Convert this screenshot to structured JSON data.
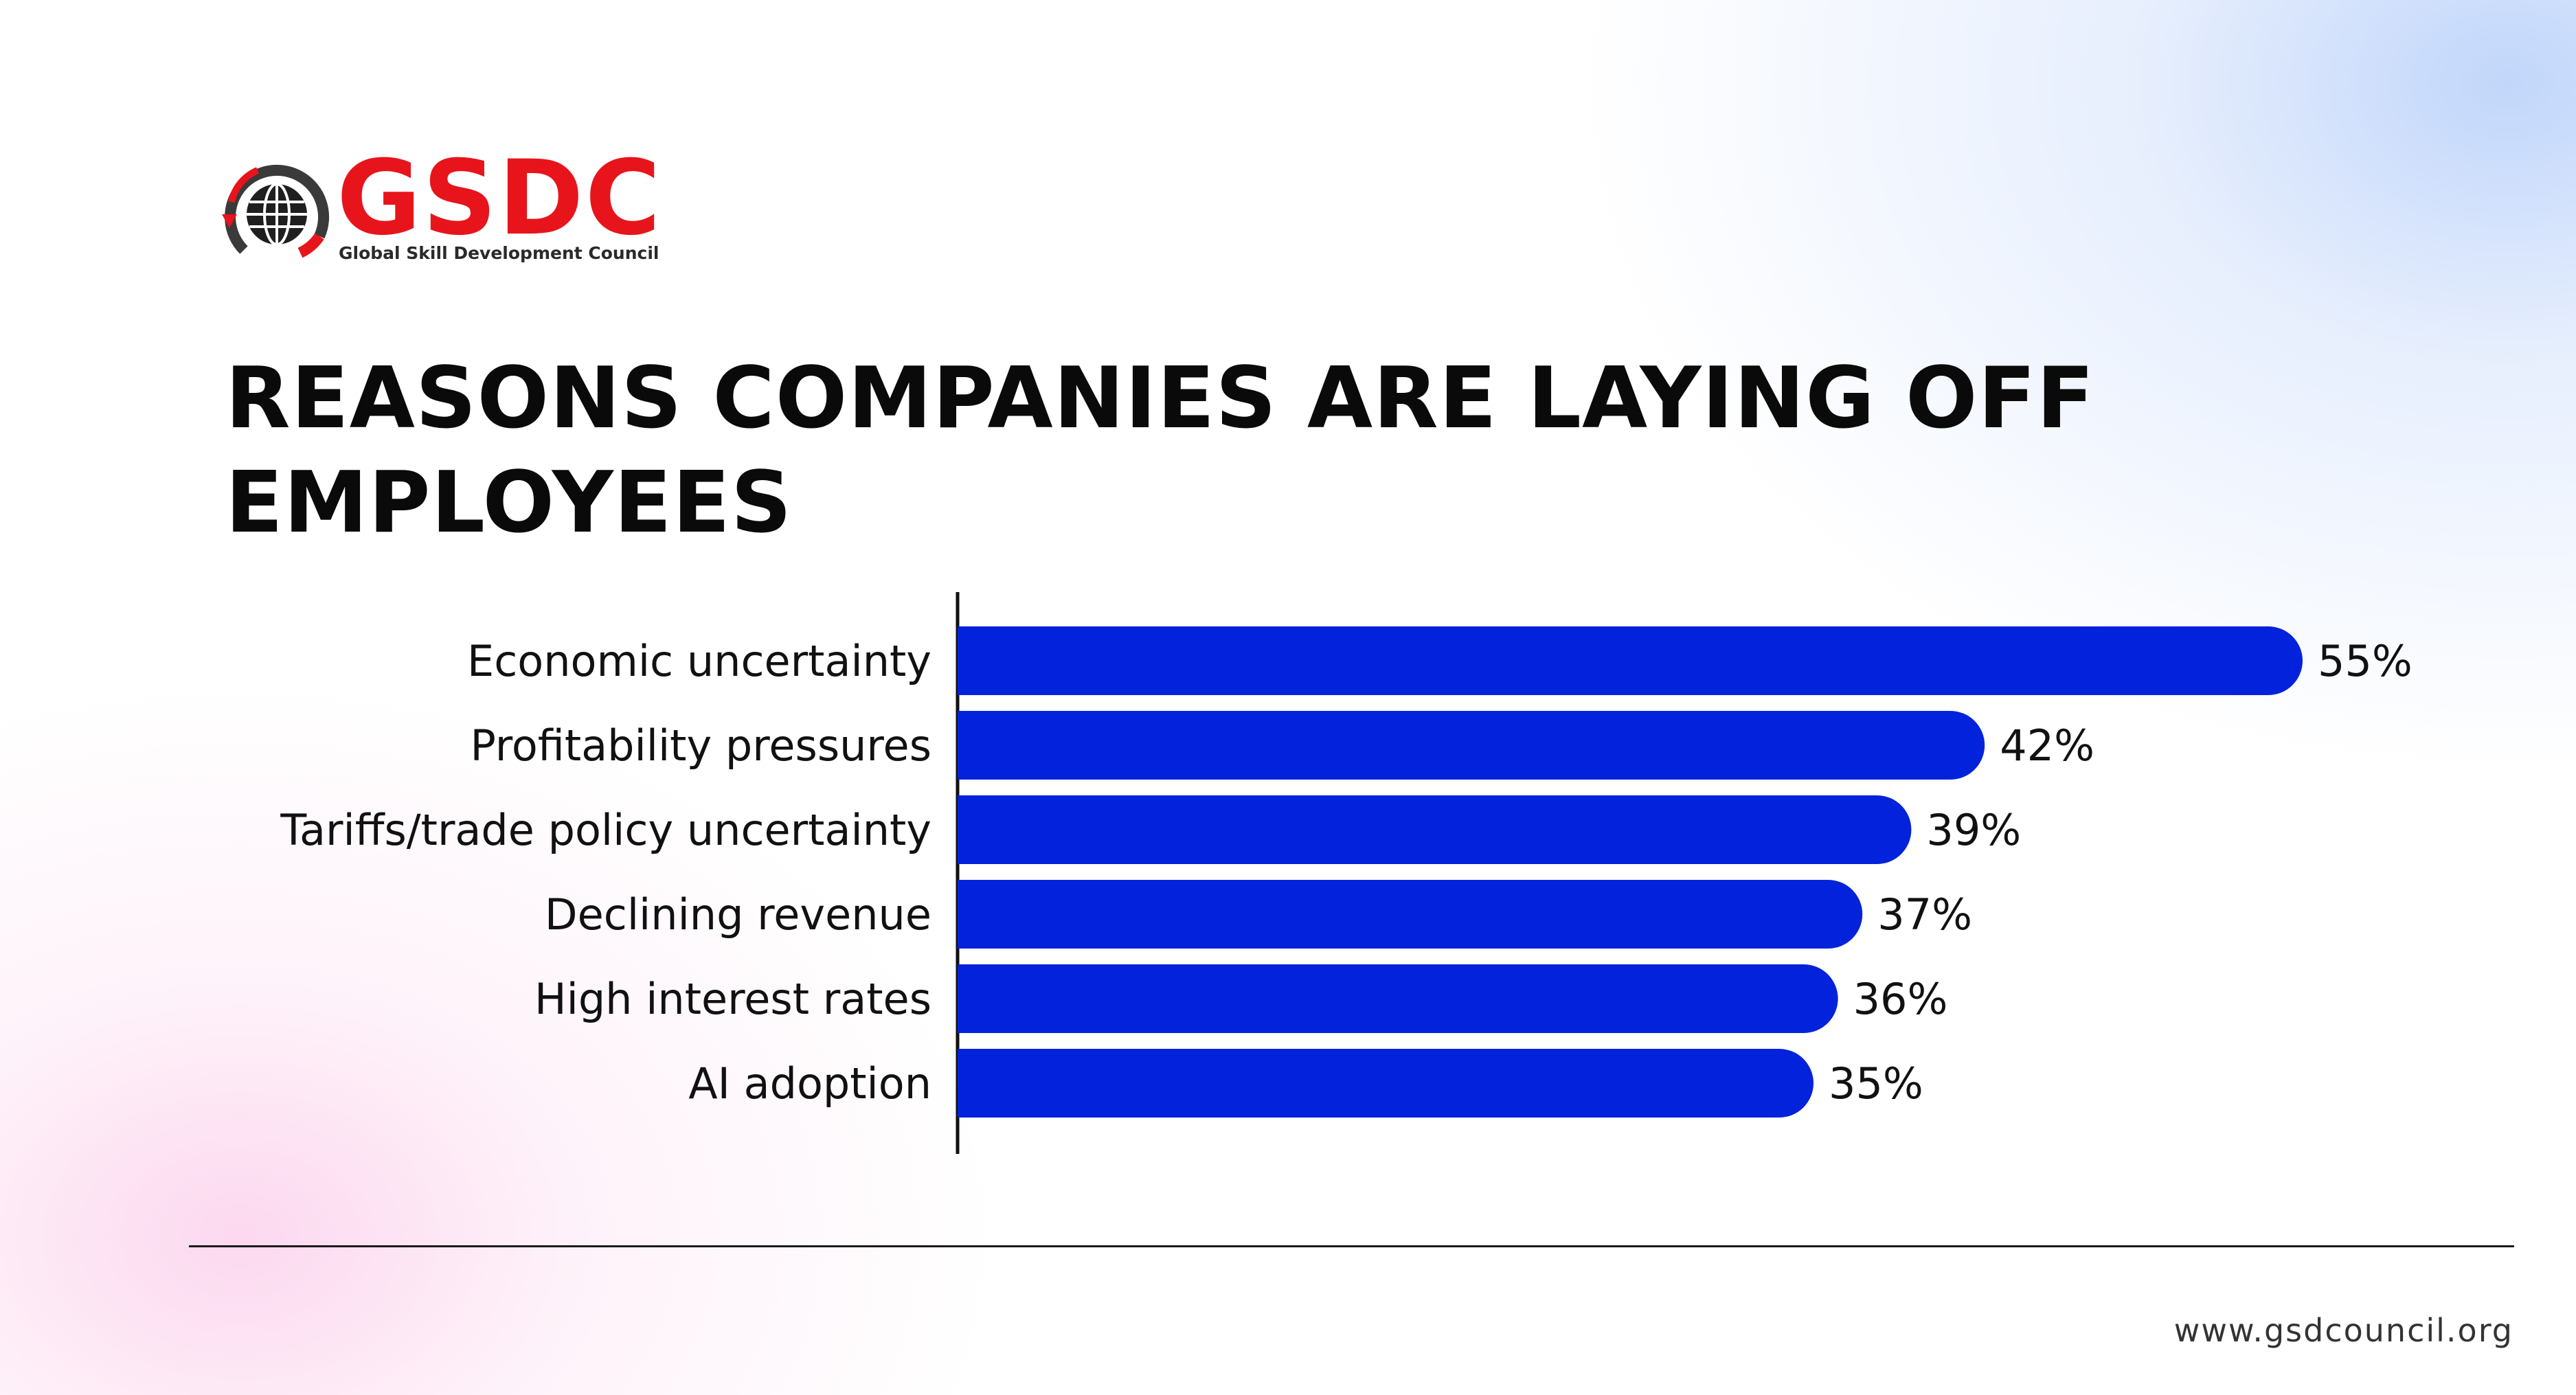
{
  "brand": {
    "name": "GSDC",
    "tagline": "Global Skill Development Council",
    "primary_color": "#e8141b",
    "icon": "globe-icon"
  },
  "title": "REASONS COMPANIES ARE LAYING OFF EMPLOYEES",
  "chart_data": {
    "type": "bar",
    "orientation": "horizontal",
    "title": "REASONS COMPANIES ARE LAYING OFF EMPLOYEES",
    "xlabel": "",
    "ylabel": "",
    "categories": [
      "Economic uncertainty",
      "Profitability pressures",
      "Tariffs/trade policy uncertainty",
      "Declining revenue",
      "High interest rates",
      "AI adoption"
    ],
    "values": [
      55,
      42,
      39,
      37,
      36,
      35
    ],
    "value_labels": [
      "55%",
      "42%",
      "39%",
      "37%",
      "36%",
      "35%"
    ],
    "xlim": [
      0,
      60
    ],
    "grid": false,
    "legend": "none",
    "bar_color": "#0322dc"
  },
  "footer": {
    "url": "www.gsdcouncil.org"
  }
}
